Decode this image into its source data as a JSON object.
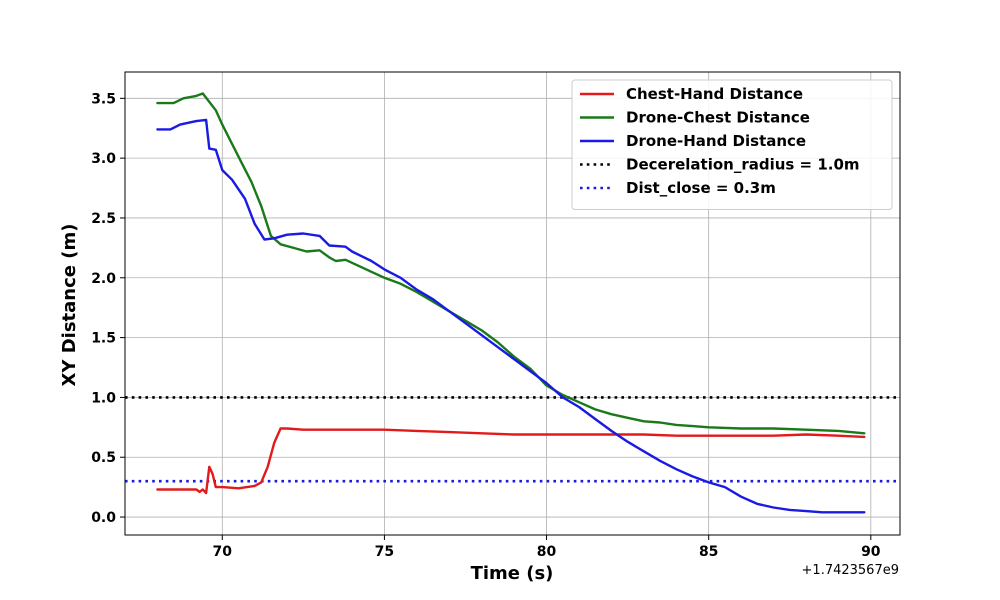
{
  "chart_data": {
    "type": "line",
    "xlabel": "Time (s)",
    "ylabel": "XY Distance (m)",
    "x_offset_text": "+1.7423567e9",
    "xlim": [
      67.0,
      90.9
    ],
    "ylim": [
      -0.15,
      3.72
    ],
    "xticks": [
      70,
      75,
      80,
      85,
      90
    ],
    "yticks": [
      0.0,
      0.5,
      1.0,
      1.5,
      2.0,
      2.5,
      3.0,
      3.5
    ],
    "xtick_labels": [
      "70",
      "75",
      "80",
      "85",
      "90"
    ],
    "ytick_labels": [
      "0.0",
      "0.5",
      "1.0",
      "1.5",
      "2.0",
      "2.5",
      "3.0",
      "3.5"
    ],
    "grid": true,
    "legend_position": "upper right",
    "series": [
      {
        "name": "Chest-Hand Distance",
        "color": "#e31a1c",
        "style": "solid",
        "x": [
          68.0,
          69.2,
          69.3,
          69.4,
          69.5,
          69.6,
          69.7,
          69.8,
          70.0,
          70.5,
          71.0,
          71.2,
          71.4,
          71.6,
          71.8,
          72.0,
          72.5,
          73,
          74,
          75,
          76,
          77,
          78,
          79,
          80,
          81,
          82,
          83,
          84,
          85,
          86,
          87,
          88,
          89,
          89.8
        ],
        "values": [
          0.23,
          0.23,
          0.21,
          0.23,
          0.2,
          0.42,
          0.36,
          0.25,
          0.25,
          0.24,
          0.26,
          0.29,
          0.42,
          0.62,
          0.74,
          0.74,
          0.73,
          0.73,
          0.73,
          0.73,
          0.72,
          0.71,
          0.7,
          0.69,
          0.69,
          0.69,
          0.69,
          0.69,
          0.68,
          0.68,
          0.68,
          0.68,
          0.69,
          0.68,
          0.67
        ]
      },
      {
        "name": "Drone-Chest Distance",
        "color": "#1a7a1a",
        "style": "solid",
        "x": [
          68.0,
          68.5,
          68.8,
          69.2,
          69.4,
          69.6,
          69.8,
          70.0,
          70.3,
          70.6,
          70.9,
          71.2,
          71.5,
          71.8,
          72.2,
          72.6,
          73.0,
          73.3,
          73.5,
          73.8,
          74.2,
          74.6,
          75.0,
          75.5,
          76.0,
          76.5,
          77.0,
          77.5,
          78.0,
          78.5,
          79.0,
          79.5,
          80.0,
          80.5,
          81.0,
          81.5,
          82.0,
          82.5,
          83.0,
          83.5,
          84.0,
          84.5,
          85.0,
          86.0,
          87.0,
          88.0,
          89.0,
          89.8
        ],
        "values": [
          3.46,
          3.46,
          3.5,
          3.52,
          3.54,
          3.47,
          3.4,
          3.28,
          3.12,
          2.96,
          2.8,
          2.6,
          2.35,
          2.28,
          2.25,
          2.22,
          2.23,
          2.17,
          2.14,
          2.15,
          2.1,
          2.05,
          2.0,
          1.95,
          1.88,
          1.8,
          1.72,
          1.64,
          1.56,
          1.46,
          1.34,
          1.24,
          1.1,
          1.02,
          0.96,
          0.9,
          0.86,
          0.83,
          0.8,
          0.79,
          0.77,
          0.76,
          0.75,
          0.74,
          0.74,
          0.73,
          0.72,
          0.7
        ]
      },
      {
        "name": "Drone-Hand Distance",
        "color": "#1a1ae3",
        "style": "solid",
        "x": [
          68.0,
          68.4,
          68.7,
          69.2,
          69.5,
          69.6,
          69.8,
          70.0,
          70.3,
          70.7,
          71.0,
          71.3,
          71.6,
          72.0,
          72.5,
          73.0,
          73.3,
          73.8,
          74.0,
          74.6,
          75.0,
          75.5,
          76.0,
          76.5,
          77.0,
          77.5,
          78.0,
          78.5,
          79.0,
          79.5,
          80.0,
          80.5,
          81.0,
          81.5,
          82.0,
          82.5,
          83.0,
          83.5,
          84.0,
          84.5,
          85.0,
          85.5,
          86.0,
          86.5,
          87.0,
          87.5,
          88.0,
          88.5,
          89.0,
          89.8
        ],
        "values": [
          3.24,
          3.24,
          3.28,
          3.31,
          3.32,
          3.08,
          3.07,
          2.9,
          2.82,
          2.66,
          2.45,
          2.32,
          2.33,
          2.36,
          2.37,
          2.35,
          2.27,
          2.26,
          2.22,
          2.14,
          2.07,
          2.0,
          1.9,
          1.82,
          1.72,
          1.62,
          1.52,
          1.42,
          1.32,
          1.22,
          1.12,
          1.0,
          0.92,
          0.82,
          0.72,
          0.63,
          0.55,
          0.47,
          0.4,
          0.34,
          0.29,
          0.25,
          0.17,
          0.11,
          0.08,
          0.06,
          0.05,
          0.04,
          0.04,
          0.04
        ]
      }
    ],
    "reference_lines": [
      {
        "name": "Decerelation_radius = 1.0m",
        "y": 1.0,
        "color": "#000000",
        "style": "dotted"
      },
      {
        "name": "Dist_close = 0.3m",
        "y": 0.3,
        "color": "#1a1ae3",
        "style": "dotted"
      }
    ]
  }
}
